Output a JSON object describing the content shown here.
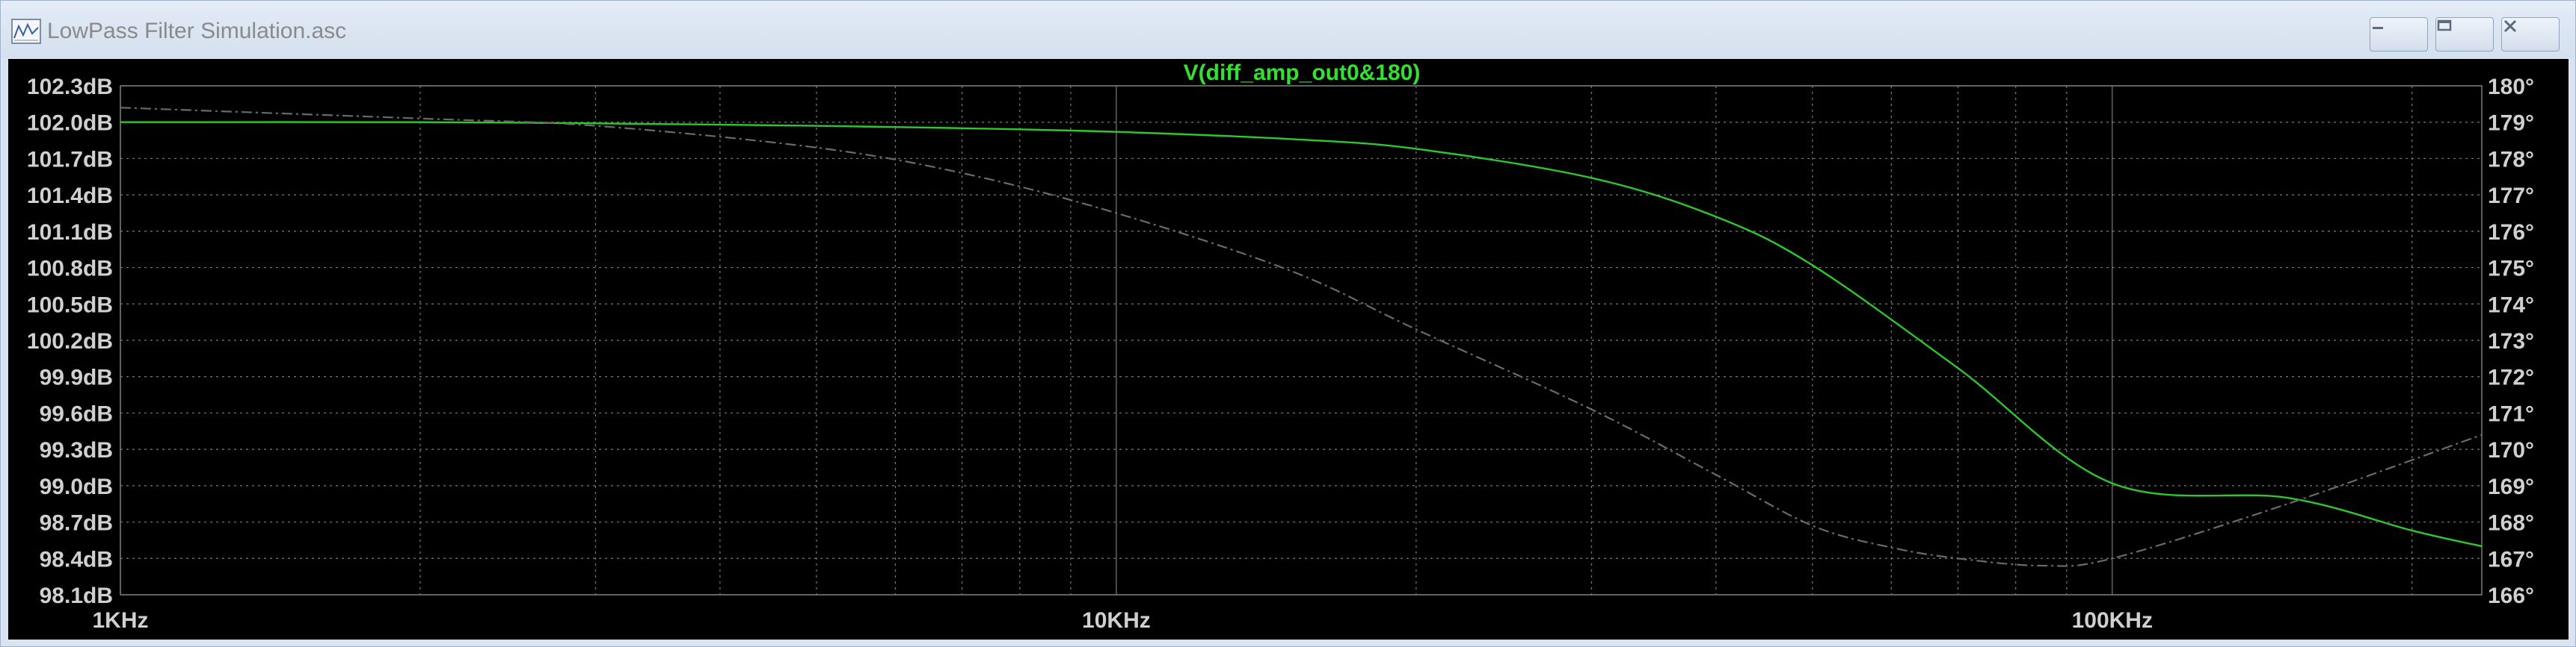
{
  "window": {
    "title": "LowPass Filter Simulation.asc",
    "controls": {
      "minimize_icon": "minimize-icon",
      "restore_icon": "restore-icon",
      "close_icon": "close-icon"
    }
  },
  "colors": {
    "background": "#000000",
    "grid": "#7a7a7a",
    "axis_text": "#d0d0d0",
    "trace": "#2ec82e",
    "title": "#33e033",
    "phase_trace": "#6a6a6a"
  },
  "chart_data": {
    "type": "line",
    "title": "V(diff_amp_out0&180)",
    "x_scale": "log",
    "x_ticks": [
      {
        "value": 1000,
        "label": "1KHz"
      },
      {
        "value": 10000,
        "label": "10KHz"
      },
      {
        "value": 100000,
        "label": "100KHz"
      }
    ],
    "xlim": [
      1000,
      235000
    ],
    "y_left": {
      "unit": "dB",
      "lim": [
        98.1,
        102.3
      ],
      "ticks": [
        "102.3dB",
        "102.0dB",
        "101.7dB",
        "101.4dB",
        "101.1dB",
        "100.8dB",
        "100.5dB",
        "100.2dB",
        "99.9dB",
        "99.6dB",
        "99.3dB",
        "99.0dB",
        "98.7dB",
        "98.4dB",
        "98.1dB"
      ]
    },
    "y_right": {
      "unit": "°",
      "lim": [
        166,
        180
      ],
      "ticks": [
        "180°",
        "179°",
        "178°",
        "177°",
        "176°",
        "175°",
        "174°",
        "173°",
        "172°",
        "171°",
        "170°",
        "169°",
        "168°",
        "167°",
        "166°"
      ]
    },
    "grid": true,
    "series": [
      {
        "name": "V(diff_amp_out0&180)",
        "axis": "left",
        "style": "solid",
        "x": [
          1000,
          2000,
          3000,
          5000,
          7000,
          10000,
          15000,
          20000,
          30000,
          40000,
          50000,
          70000,
          100000,
          150000,
          200000,
          235000
        ],
        "y": [
          102.0,
          102.0,
          101.99,
          101.97,
          101.95,
          101.92,
          101.86,
          101.78,
          101.54,
          101.22,
          100.82,
          99.97,
          99.02,
          98.9,
          98.63,
          98.5
        ]
      },
      {
        "name": "",
        "axis": "right",
        "style": "dashed",
        "x": [
          1000,
          2000,
          3000,
          5000,
          7000,
          10000,
          15000,
          20000,
          30000,
          40000,
          50000,
          60000,
          70000,
          85000,
          100000,
          150000,
          235000
        ],
        "y": [
          179.4,
          179.1,
          178.9,
          178.3,
          177.6,
          176.5,
          174.9,
          173.3,
          171.1,
          169.3,
          167.9,
          167.3,
          167.0,
          166.8,
          167.0,
          168.5,
          170.4
        ]
      }
    ]
  }
}
